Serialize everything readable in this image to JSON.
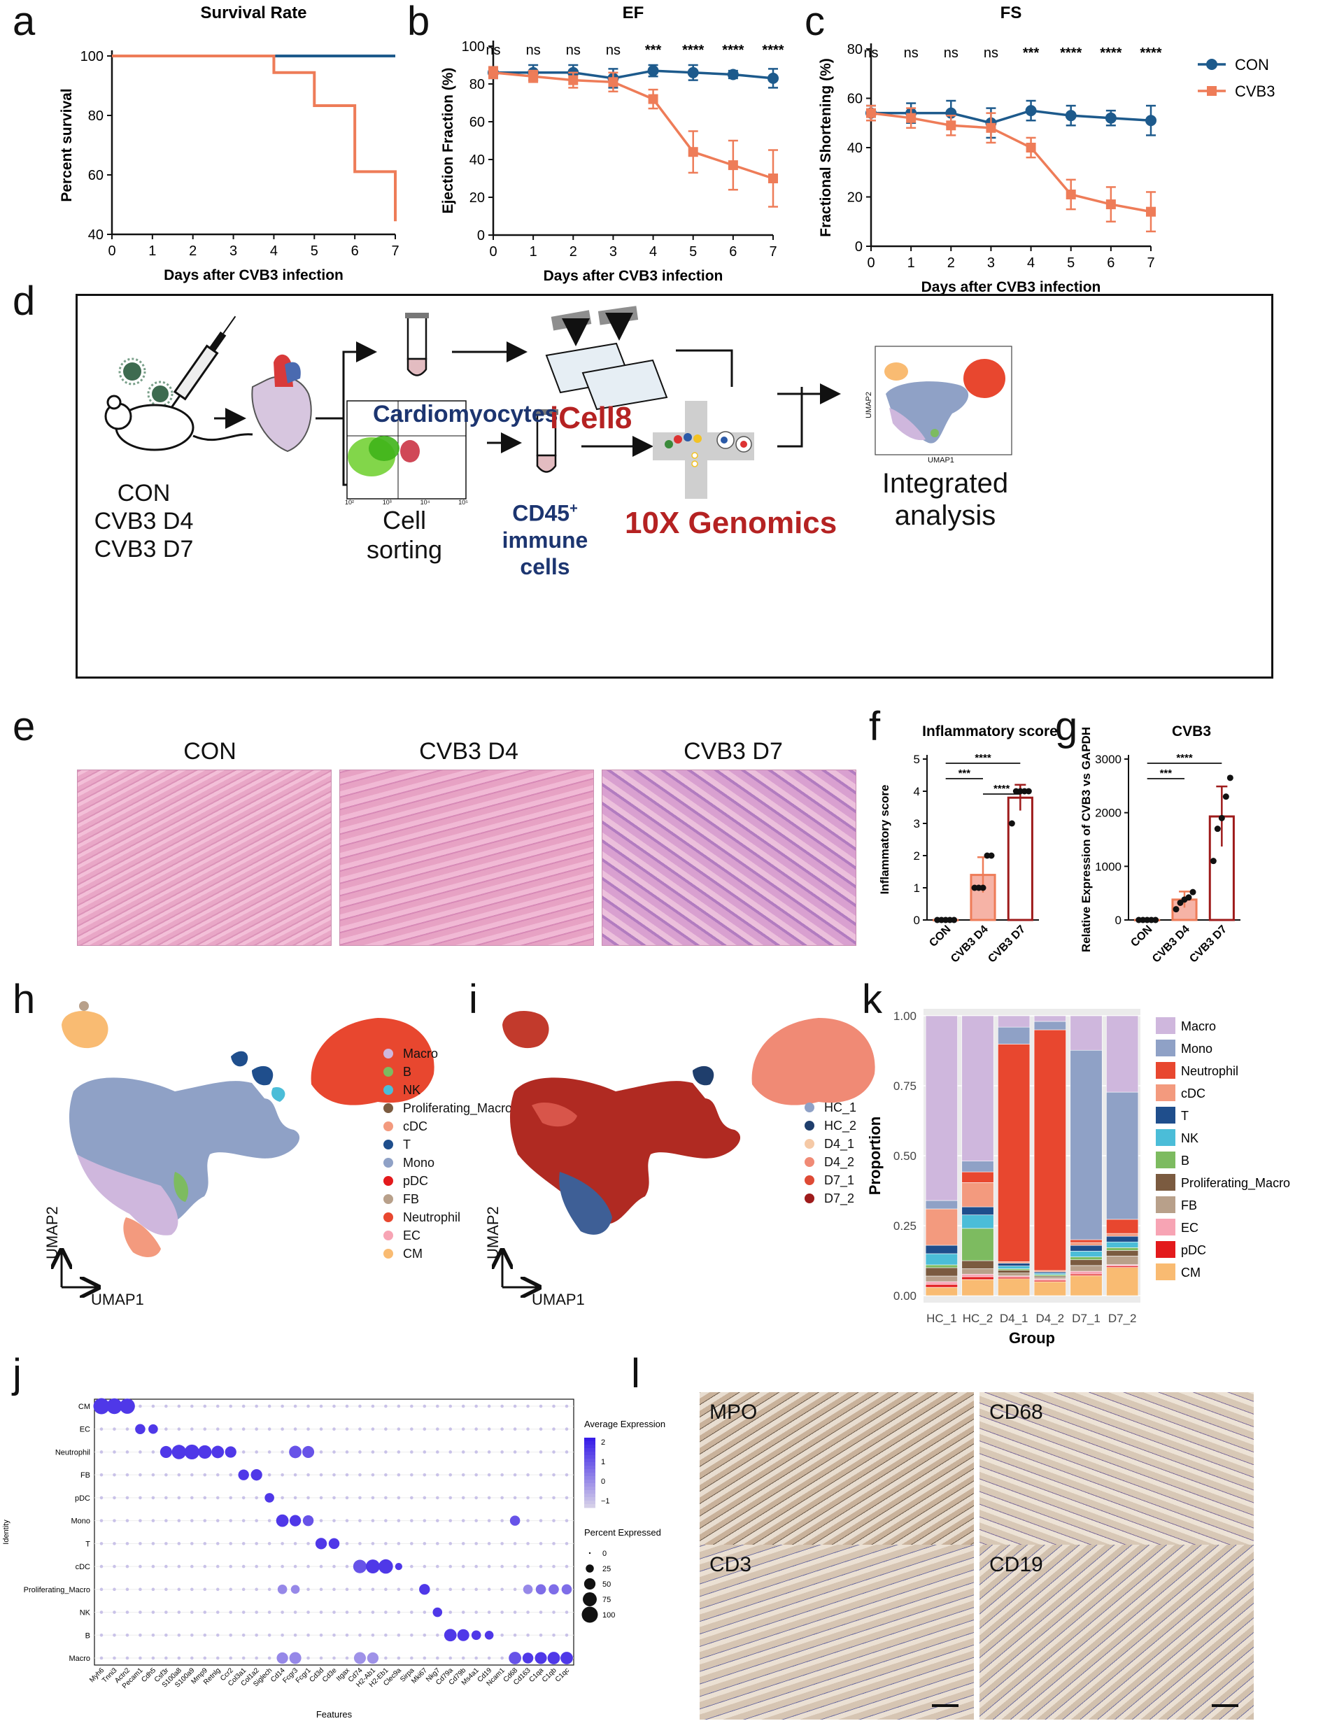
{
  "panels": {
    "a": "a",
    "b": "b",
    "c": "c",
    "d": "d",
    "e": "e",
    "f": "f",
    "g": "g",
    "h": "h",
    "i": "i",
    "j": "j",
    "k": "k",
    "l": "l"
  },
  "colors": {
    "con": "#1d5a8c",
    "cvb3": "#ee7c58",
    "dark_red": "#9e1b1b",
    "navy": "#1c3570",
    "sig": "#111111"
  },
  "chart_data": [
    {
      "id": "a",
      "type": "line",
      "title": "Survival Rate",
      "xlabel": "Days after CVB3  infection",
      "ylabel": "Percent survival",
      "xlim": [
        0,
        7
      ],
      "ylim": [
        40,
        100
      ],
      "xticks": [
        0,
        1,
        2,
        3,
        4,
        5,
        6,
        7
      ],
      "yticks": [
        40,
        60,
        80,
        100
      ],
      "series": [
        {
          "name": "CON",
          "color": "#1d5a8c",
          "steps": [
            [
              0,
              100
            ],
            [
              7,
              100
            ]
          ]
        },
        {
          "name": "CVB3",
          "color": "#ee7c58",
          "steps": [
            [
              0,
              100
            ],
            [
              4,
              100
            ],
            [
              4,
              94.4
            ],
            [
              5,
              94.4
            ],
            [
              5,
              83.3
            ],
            [
              6,
              83.3
            ],
            [
              6,
              61.1
            ],
            [
              7,
              61.1
            ],
            [
              7,
              44.4
            ]
          ]
        }
      ]
    },
    {
      "id": "b",
      "type": "line",
      "title": "EF",
      "xlabel": "Days after CVB3  infection",
      "ylabel": "Ejection Fraction (%)",
      "xlim": [
        0,
        7
      ],
      "ylim": [
        0,
        100
      ],
      "xticks": [
        0,
        1,
        2,
        3,
        4,
        5,
        6,
        7
      ],
      "yticks": [
        0,
        20,
        40,
        60,
        80,
        100
      ],
      "significance": [
        "ns",
        "ns",
        "ns",
        "ns",
        "***",
        "****",
        "****",
        "****"
      ],
      "series": [
        {
          "name": "CON",
          "color": "#1d5a8c",
          "x": [
            0,
            1,
            2,
            3,
            4,
            5,
            6,
            7
          ],
          "y": [
            86,
            86,
            86,
            83,
            87,
            86,
            85,
            83
          ],
          "err": [
            3,
            4,
            4,
            5,
            3,
            4,
            2,
            5
          ]
        },
        {
          "name": "CVB3",
          "color": "#ee7c58",
          "x": [
            0,
            1,
            2,
            3,
            4,
            5,
            6,
            7
          ],
          "y": [
            86,
            84,
            82,
            81,
            72,
            44,
            37,
            30
          ],
          "err": [
            3,
            3,
            4,
            5,
            5,
            11,
            13,
            15
          ]
        }
      ]
    },
    {
      "id": "c",
      "type": "line",
      "title": "FS",
      "xlabel": "Days after CVB3  infection",
      "ylabel": "Fractional Shortening (%)",
      "xlim": [
        0,
        7
      ],
      "ylim": [
        0,
        80
      ],
      "xticks": [
        0,
        1,
        2,
        3,
        4,
        5,
        6,
        7
      ],
      "yticks": [
        0,
        20,
        40,
        60,
        80
      ],
      "significance": [
        "ns",
        "ns",
        "ns",
        "ns",
        "***",
        "****",
        "****",
        "****"
      ],
      "legend": [
        "CON",
        "CVB3"
      ],
      "series": [
        {
          "name": "CON",
          "color": "#1d5a8c",
          "x": [
            0,
            1,
            2,
            3,
            4,
            5,
            6,
            7
          ],
          "y": [
            54,
            54,
            54,
            50,
            55,
            53,
            52,
            51
          ],
          "err": [
            3,
            4,
            5,
            6,
            4,
            4,
            3,
            6
          ]
        },
        {
          "name": "CVB3",
          "color": "#ee7c58",
          "x": [
            0,
            1,
            2,
            3,
            4,
            5,
            6,
            7
          ],
          "y": [
            54,
            52,
            49,
            48,
            40,
            21,
            17,
            14
          ],
          "err": [
            3,
            4,
            4,
            6,
            4,
            6,
            7,
            8
          ]
        }
      ]
    },
    {
      "id": "f",
      "type": "bar",
      "title": "Inflammatory score",
      "ylabel": "Inflammatory score",
      "categories": [
        "CON",
        "CVB3 D4",
        "CVB3 D7"
      ],
      "values": [
        0,
        1.4,
        3.8
      ],
      "err": [
        0,
        0.55,
        0.4
      ],
      "ylim": [
        0,
        5
      ],
      "yticks": [
        0,
        1,
        2,
        3,
        4,
        5
      ],
      "points": [
        [
          0,
          0,
          0,
          0,
          0
        ],
        [
          1,
          1,
          1,
          2,
          2
        ],
        [
          3,
          4,
          4,
          4,
          4
        ]
      ],
      "comparisons": [
        {
          "a": 0,
          "b": 2,
          "label": "****"
        },
        {
          "a": 0,
          "b": 1,
          "label": "***"
        },
        {
          "a": 1,
          "b": 2,
          "label": "****"
        }
      ]
    },
    {
      "id": "g",
      "type": "bar",
      "title": "CVB3",
      "ylabel": "Relative Expression of CVB3 vs GAPDH",
      "categories": [
        "CON",
        "CVB3 D4",
        "CVB3 D7"
      ],
      "values": [
        0,
        380,
        1930
      ],
      "err": [
        0,
        150,
        560
      ],
      "ylim": [
        0,
        3000
      ],
      "yticks": [
        0,
        1000,
        2000,
        3000
      ],
      "points": [
        [
          0,
          0,
          0,
          0,
          0
        ],
        [
          200,
          320,
          380,
          420,
          520
        ],
        [
          1100,
          1700,
          1900,
          2300,
          2650
        ]
      ],
      "comparisons": [
        {
          "a": 0,
          "b": 2,
          "label": "****"
        },
        {
          "a": 0,
          "b": 1,
          "label": "***"
        }
      ]
    },
    {
      "id": "k",
      "type": "bar",
      "stacked": true,
      "xlabel": "Group",
      "ylabel": "Proportion",
      "categories": [
        "HC_1",
        "HC_2",
        "D4_1",
        "D4_2",
        "D7_1",
        "D7_2"
      ],
      "ylim": [
        0,
        1
      ],
      "yticks": [
        "0.00",
        "0.25",
        "0.50",
        "0.75",
        "1.00"
      ],
      "series": [
        {
          "name": "CM",
          "color": "#f9bb72",
          "values": [
            0.03,
            0.06,
            0.06,
            0.05,
            0.07,
            0.1
          ]
        },
        {
          "name": "pDC",
          "color": "#e31a1c",
          "values": [
            0.01,
            0.01,
            0.005,
            0.005,
            0.005,
            0.005
          ]
        },
        {
          "name": "EC",
          "color": "#f7a4b4",
          "values": [
            0.01,
            0.01,
            0.005,
            0.005,
            0.01,
            0.005
          ]
        },
        {
          "name": "FB",
          "color": "#b8a08a",
          "values": [
            0.02,
            0.02,
            0.01,
            0.005,
            0.02,
            0.03
          ]
        },
        {
          "name": "Proliferating_Macro",
          "color": "#7b5b40",
          "values": [
            0.03,
            0.03,
            0.01,
            0.005,
            0.02,
            0.02
          ]
        },
        {
          "name": "B",
          "color": "#7dbb60",
          "values": [
            0.01,
            0.12,
            0.005,
            0.005,
            0.01,
            0.01
          ]
        },
        {
          "name": "NK",
          "color": "#4bbdd8",
          "values": [
            0.04,
            0.05,
            0.01,
            0.005,
            0.02,
            0.02
          ]
        },
        {
          "name": "T",
          "color": "#1f4e8c",
          "values": [
            0.03,
            0.03,
            0.01,
            0.005,
            0.02,
            0.02
          ]
        },
        {
          "name": "cDC",
          "color": "#f39a7e",
          "values": [
            0.13,
            0.09,
            0.005,
            0.005,
            0.01,
            0.01
          ]
        },
        {
          "name": "Neutrophil",
          "color": "#e8472f",
          "values": [
            0.0,
            0.04,
            0.77,
            0.86,
            0.01,
            0.05
          ]
        },
        {
          "name": "Mono",
          "color": "#8fa1c6",
          "values": [
            0.03,
            0.04,
            0.06,
            0.03,
            0.66,
            0.45
          ]
        },
        {
          "name": "Macro",
          "color": "#cfb7dd",
          "values": [
            0.66,
            0.54,
            0.04,
            0.02,
            0.12,
            0.27
          ]
        }
      ]
    },
    {
      "id": "j",
      "type": "scatter",
      "subtype": "dotplot",
      "xlabel": "Features",
      "ylabel": "Identity",
      "rows": [
        "CM",
        "EC",
        "Neutrophil",
        "FB",
        "pDC",
        "Mono",
        "T",
        "cDC",
        "Proliferating_Macro",
        "NK",
        "B",
        "Macro"
      ],
      "features": [
        "Myh6",
        "Tnni3",
        "Actn2",
        "Pecam1",
        "Cdh5",
        "Csf3r",
        "S100a8",
        "S100a9",
        "Mmp9",
        "Retnlg",
        "Ccr2",
        "Col3a1",
        "Col1a2",
        "Siglech",
        "Cd14",
        "Fcgr3",
        "Fcgr1",
        "Cd3d",
        "Cd3e",
        "Itgax",
        "Cd74",
        "H2-Ab1",
        "H2-Eb1",
        "Clec9a",
        "Sirpa",
        "Mki67",
        "Nkg7",
        "Cd79a",
        "Cd79b",
        "Ms4a1",
        "Cd19",
        "Ncam1",
        "Cd68",
        "Cd163",
        "C1qa",
        "C1qb",
        "C1qc"
      ],
      "highlights": [
        [
          0,
          0,
          100,
          2
        ],
        [
          0,
          1,
          95,
          2
        ],
        [
          0,
          2,
          90,
          2
        ],
        [
          1,
          3,
          40,
          2
        ],
        [
          1,
          4,
          35,
          2
        ],
        [
          2,
          5,
          55,
          2
        ],
        [
          2,
          6,
          80,
          2
        ],
        [
          2,
          7,
          85,
          2
        ],
        [
          2,
          8,
          70,
          2
        ],
        [
          2,
          9,
          60,
          2
        ],
        [
          2,
          10,
          50,
          2
        ],
        [
          2,
          15,
          60,
          1.5
        ],
        [
          2,
          16,
          55,
          1.5
        ],
        [
          3,
          11,
          45,
          2
        ],
        [
          3,
          12,
          50,
          2
        ],
        [
          4,
          13,
          35,
          2
        ],
        [
          5,
          14,
          60,
          2
        ],
        [
          5,
          15,
          50,
          2
        ],
        [
          5,
          16,
          45,
          1.5
        ],
        [
          5,
          32,
          40,
          1.5
        ],
        [
          6,
          17,
          50,
          2
        ],
        [
          6,
          18,
          45,
          2
        ],
        [
          7,
          20,
          70,
          1.5
        ],
        [
          7,
          21,
          75,
          2
        ],
        [
          7,
          22,
          80,
          2
        ],
        [
          7,
          23,
          20,
          2
        ],
        [
          8,
          25,
          45,
          2
        ],
        [
          8,
          14,
          35,
          0.5
        ],
        [
          8,
          15,
          30,
          0.5
        ],
        [
          8,
          33,
          35,
          0.5
        ],
        [
          8,
          34,
          40,
          1
        ],
        [
          8,
          35,
          40,
          1
        ],
        [
          8,
          36,
          40,
          1
        ],
        [
          9,
          26,
          35,
          2
        ],
        [
          10,
          27,
          60,
          2
        ],
        [
          10,
          28,
          55,
          2
        ],
        [
          10,
          29,
          35,
          2
        ],
        [
          10,
          30,
          30,
          2
        ],
        [
          11,
          32,
          60,
          1.5
        ],
        [
          11,
          33,
          45,
          2
        ],
        [
          11,
          34,
          55,
          2
        ],
        [
          11,
          35,
          60,
          2
        ],
        [
          11,
          36,
          60,
          2
        ],
        [
          11,
          14,
          50,
          0.5
        ],
        [
          11,
          15,
          55,
          0.5
        ],
        [
          11,
          20,
          55,
          0.3
        ],
        [
          11,
          21,
          50,
          0.3
        ]
      ],
      "legend_title_color": "Average Expression",
      "color_ticks": [
        "2",
        "1",
        "0",
        "−1"
      ],
      "legend_title_size": "Percent Expressed",
      "size_ticks": [
        "0",
        "25",
        "50",
        "75",
        "100"
      ]
    }
  ],
  "schematic": {
    "groups": [
      "CON",
      "CVB3 D4",
      "CVB3 D7"
    ],
    "cardiomyocytes": "Cardiomyocytes",
    "icell8": "iCell8",
    "cell_sorting_1": "Cell",
    "cell_sorting_2": "sorting",
    "cd45_1": "CD45",
    "cd45_sup": "+",
    "cd45_2": "immune cells",
    "tenx": "10X Genomics",
    "integrated_1": "Integrated",
    "integrated_2": "analysis",
    "umap1": "UMAP1",
    "umap2": "UMAP2",
    "flow_ticks": [
      "10²",
      "10³",
      "10⁴",
      "10⁵"
    ]
  },
  "he": {
    "labels": [
      "CON",
      "CVB3 D4",
      "CVB3 D7"
    ]
  },
  "umap_h": {
    "legend": [
      {
        "name": "Macro",
        "color": "#cfb7dd"
      },
      {
        "name": "B",
        "color": "#7dbb60"
      },
      {
        "name": "NK",
        "color": "#4bbdd8"
      },
      {
        "name": "Proliferating_Macro",
        "color": "#7b5b40"
      },
      {
        "name": "cDC",
        "color": "#f39a7e"
      },
      {
        "name": "T",
        "color": "#1f4e8c"
      },
      {
        "name": "Mono",
        "color": "#8fa1c6"
      },
      {
        "name": "pDC",
        "color": "#e31a1c"
      },
      {
        "name": "FB",
        "color": "#b8a08a"
      },
      {
        "name": "Neutrophil",
        "color": "#e8472f"
      },
      {
        "name": "EC",
        "color": "#f7a4b4"
      },
      {
        "name": "CM",
        "color": "#f9bb72"
      }
    ],
    "axis_x": "UMAP1",
    "axis_y": "UMAP2"
  },
  "umap_i": {
    "legend": [
      {
        "name": "HC_1",
        "color": "#8fa1c6"
      },
      {
        "name": "HC_2",
        "color": "#1f3e6c"
      },
      {
        "name": "D4_1",
        "color": "#f5c9a6"
      },
      {
        "name": "D4_2",
        "color": "#f08a75"
      },
      {
        "name": "D7_1",
        "color": "#de4a35"
      },
      {
        "name": "D7_2",
        "color": "#9e1b1b"
      }
    ],
    "axis_x": "UMAP1",
    "axis_y": "UMAP2"
  },
  "ihc": {
    "labels": [
      "MPO",
      "CD68",
      "CD3",
      "CD19"
    ]
  }
}
